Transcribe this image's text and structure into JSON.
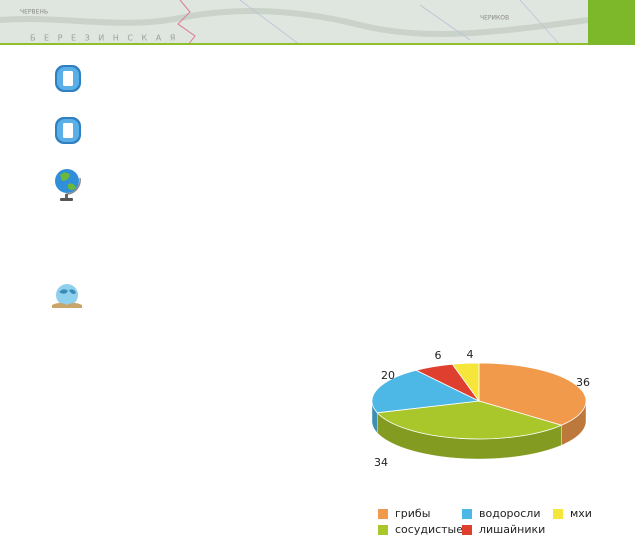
{
  "map_labels": [
    "ЧЕРВЕНЬ",
    "Б Е Р Е З И Н С К А Я",
    "ЧЕРИКОВ"
  ],
  "chart_data": {
    "type": "pie",
    "categories": [
      "грибы",
      "сосудистые",
      "водоросли",
      "лишайники",
      "мхи"
    ],
    "values": [
      36,
      34,
      20,
      6,
      4
    ],
    "colors": [
      "#f29a4c",
      "#a9c72b",
      "#4db7e6",
      "#df3f2e",
      "#f6e53a"
    ],
    "legend_order": [
      0,
      2,
      4,
      1,
      3
    ]
  }
}
